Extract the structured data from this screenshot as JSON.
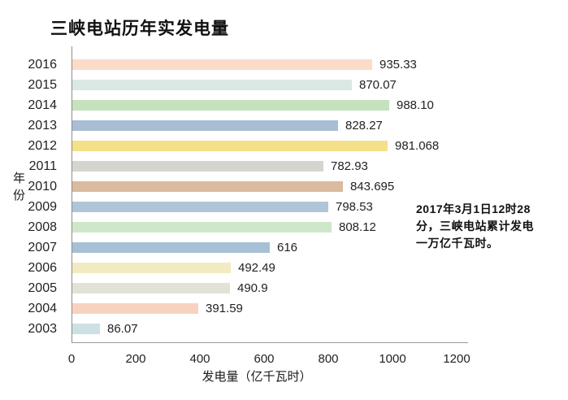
{
  "title": "三峡电站历年实发电量",
  "chart_data": {
    "type": "bar",
    "orientation": "horizontal",
    "title": "三峡电站历年实发电量",
    "xlabel": "发电量（亿千瓦时）",
    "ylabel": "年份",
    "xlim": [
      0,
      1200
    ],
    "x_ticks": [
      0,
      200,
      400,
      600,
      800,
      1000,
      1200
    ],
    "grid": false,
    "legend": false,
    "categories": [
      "2016",
      "2015",
      "2014",
      "2013",
      "2012",
      "2011",
      "2010",
      "2009",
      "2008",
      "2007",
      "2006",
      "2005",
      "2004",
      "2003"
    ],
    "values": [
      935.33,
      870.07,
      988.1,
      828.27,
      981.068,
      782.93,
      843.695,
      798.53,
      808.12,
      616,
      492.49,
      490.9,
      391.59,
      86.07
    ],
    "value_labels": [
      "935.33",
      "870.07",
      "988.10",
      "828.27",
      "981.068",
      "782.93",
      "843.695",
      "798.53",
      "808.12",
      "616",
      "492.49",
      "490.9",
      "391.59",
      "86.07"
    ],
    "bar_colors": [
      "#fadcc8",
      "#dbe8e4",
      "#c5e1bd",
      "#a9bdd3",
      "#f4e08a",
      "#d5d5cf",
      "#dabb9e",
      "#b1c5d8",
      "#cfe7c9",
      "#a8c0d6",
      "#f3ebc0",
      "#e2e3d6",
      "#f8d2c0",
      "#cde0e3"
    ]
  },
  "annotation": {
    "full_text": "2017年3月1日12时28分，三峡电站累计发电一万亿千瓦时。",
    "lines": [
      "2017年3月1日12时28",
      "分，三峡电站累计发电",
      "一万亿千瓦时。"
    ]
  },
  "colors": {
    "background": "#ffffff",
    "axis_line": "#8c8c8c",
    "text": "#1a1a1a"
  }
}
